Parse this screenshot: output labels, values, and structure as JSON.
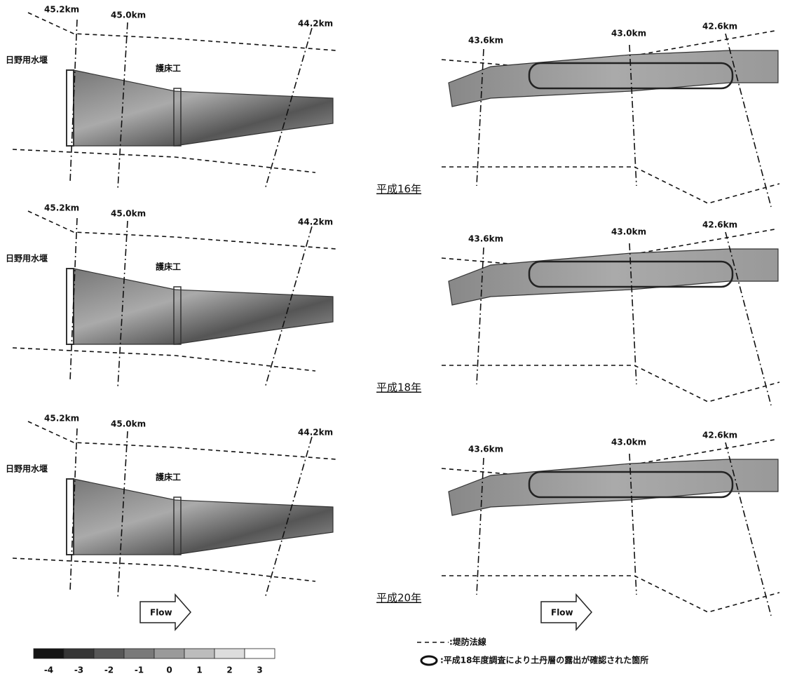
{
  "panels": [
    {
      "year": "平成16年",
      "left": {
        "km_labels": [
          "45.2km",
          "45.0km",
          "44.2km"
        ],
        "weir": "日野用水堰",
        "apron": "護床工"
      },
      "right": {
        "km_labels": [
          "43.6km",
          "43.0km",
          "42.6km"
        ]
      }
    },
    {
      "year": "平成18年",
      "left": {
        "km_labels": [
          "45.2km",
          "45.0km",
          "44.2km"
        ],
        "weir": "日野用水堰",
        "apron": "護床工"
      },
      "right": {
        "km_labels": [
          "43.6km",
          "43.0km",
          "42.6km"
        ]
      }
    },
    {
      "year": "平成20年",
      "left": {
        "km_labels": [
          "45.2km",
          "45.0km",
          "44.2km"
        ],
        "weir": "日野用水堰",
        "apron": "護床工"
      },
      "right": {
        "km_labels": [
          "43.6km",
          "43.0km",
          "42.6km"
        ]
      }
    }
  ],
  "flow": [
    "Flow",
    "Flow"
  ],
  "color_scale": {
    "ticks": [
      -4,
      -3,
      -2,
      -1,
      0,
      1,
      2,
      3
    ]
  },
  "legend": {
    "bank_line": ":堤防法線",
    "exposure": ":平成18年度調査により土丹層の露出が確認された箇所"
  }
}
